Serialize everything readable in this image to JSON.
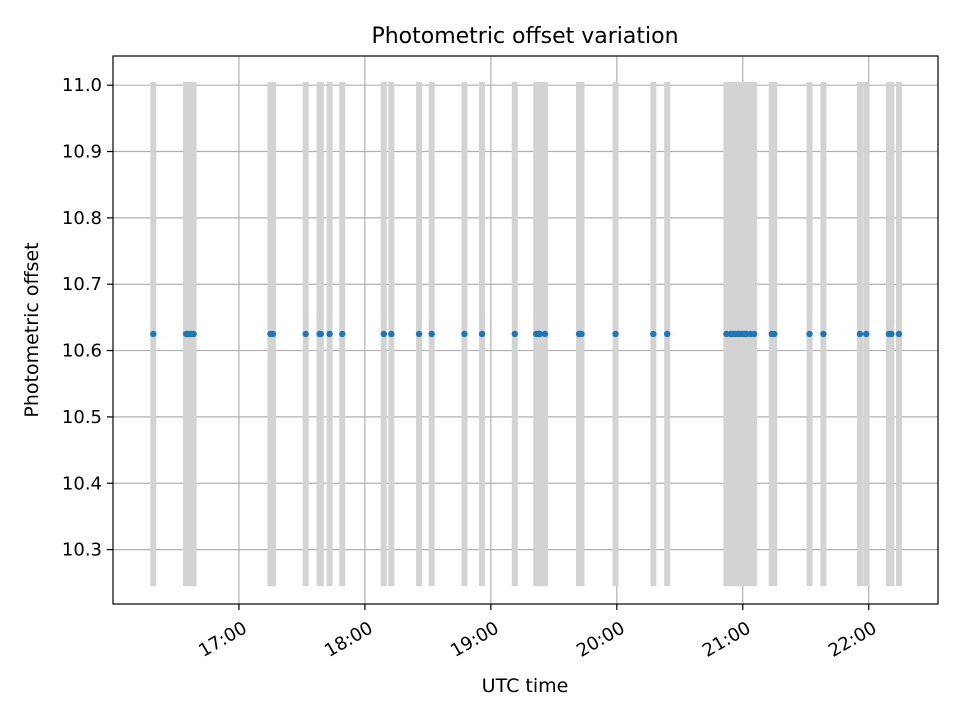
{
  "chart_data": {
    "type": "scatter",
    "title": "Photometric offset variation",
    "xlabel": "UTC time",
    "ylabel": "Photometric offset",
    "x_axis": {
      "unit": "hours UTC",
      "range": [
        16.0,
        22.55
      ],
      "ticks": [
        {
          "value": 17,
          "label": "17:00"
        },
        {
          "value": 18,
          "label": "18:00"
        },
        {
          "value": 19,
          "label": "19:00"
        },
        {
          "value": 20,
          "label": "20:00"
        },
        {
          "value": 21,
          "label": "21:00"
        },
        {
          "value": 22,
          "label": "22:00"
        }
      ]
    },
    "y_axis": {
      "range": [
        10.218,
        11.044
      ],
      "ticks": [
        {
          "value": 10.3,
          "label": "10.3"
        },
        {
          "value": 10.4,
          "label": "10.4"
        },
        {
          "value": 10.5,
          "label": "10.5"
        },
        {
          "value": 10.6,
          "label": "10.6"
        },
        {
          "value": 10.7,
          "label": "10.7"
        },
        {
          "value": 10.8,
          "label": "10.8"
        },
        {
          "value": 10.9,
          "label": "10.9"
        },
        {
          "value": 11.0,
          "label": "11.0"
        }
      ]
    },
    "grid": true,
    "legend": "none",
    "colors": {
      "points": "#1f77b4",
      "bars": "#d3d3d3",
      "grid": "#b0b0b0"
    },
    "error_bar_range": [
      10.245,
      11.005
    ],
    "series": [
      {
        "values_x": [
          16.32,
          16.58,
          16.6,
          16.62,
          16.64,
          17.25,
          17.27,
          17.53,
          17.64,
          17.65,
          17.72,
          17.82,
          18.15,
          18.21,
          18.43,
          18.53,
          18.79,
          18.93,
          19.19,
          19.36,
          19.38,
          19.39,
          19.43,
          19.7,
          19.71,
          19.72,
          19.99,
          20.29,
          20.4,
          20.87,
          20.9,
          20.92,
          20.94,
          20.96,
          20.97,
          20.99,
          21.01,
          21.03,
          21.06,
          21.09,
          21.23,
          21.25,
          21.53,
          21.64,
          21.93,
          21.98,
          22.16,
          22.18,
          22.24
        ],
        "values_y": [
          10.625,
          10.625,
          10.625,
          10.625,
          10.625,
          10.625,
          10.625,
          10.625,
          10.625,
          10.625,
          10.625,
          10.625,
          10.625,
          10.625,
          10.625,
          10.625,
          10.625,
          10.625,
          10.625,
          10.625,
          10.625,
          10.625,
          10.625,
          10.625,
          10.625,
          10.625,
          10.625,
          10.625,
          10.625,
          10.625,
          10.625,
          10.625,
          10.625,
          10.625,
          10.625,
          10.625,
          10.625,
          10.625,
          10.625,
          10.625,
          10.625,
          10.625,
          10.625,
          10.625,
          10.625,
          10.625,
          10.625,
          10.625,
          10.625
        ]
      }
    ]
  }
}
